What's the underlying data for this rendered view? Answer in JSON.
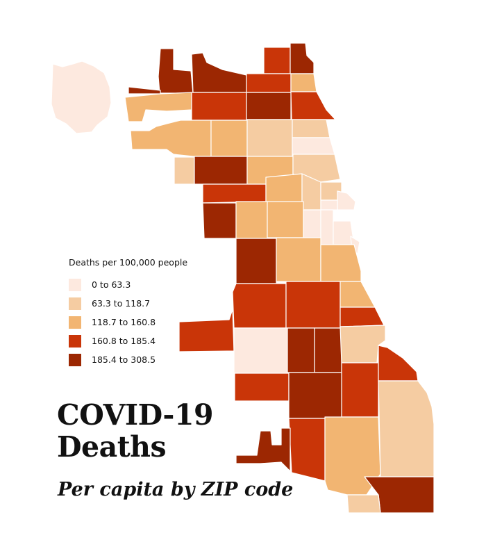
{
  "title_line1": "COVID-19",
  "title_line2": "Deaths",
  "subtitle": "Per capita by ZIP code",
  "legend": {
    "title": "Deaths per 100,000 people",
    "bins": [
      {
        "label": "0 to 63.3",
        "color": "#fde9df"
      },
      {
        "label": "63.3 to 118.7",
        "color": "#f5cca2"
      },
      {
        "label": "118.7 to 160.8",
        "color": "#f2b572"
      },
      {
        "label": "160.8 to 185.4",
        "color": "#c93508"
      },
      {
        "label": "185.4 to 308.5",
        "color": "#9c2702"
      }
    ]
  },
  "zip_areas": [
    {
      "bin": 0
    },
    {
      "bin": 4
    },
    {
      "bin": 4
    },
    {
      "bin": 4
    },
    {
      "bin": 3
    },
    {
      "bin": 4
    },
    {
      "bin": 3
    },
    {
      "bin": 2
    },
    {
      "bin": 2
    },
    {
      "bin": 3
    },
    {
      "bin": 4
    },
    {
      "bin": 3
    },
    {
      "bin": 2
    },
    {
      "bin": 2
    },
    {
      "bin": 1
    },
    {
      "bin": 1
    },
    {
      "bin": 0
    },
    {
      "bin": 1
    },
    {
      "bin": 4
    },
    {
      "bin": 2
    },
    {
      "bin": 1
    },
    {
      "bin": 3
    },
    {
      "bin": 2
    },
    {
      "bin": 1
    },
    {
      "bin": 1
    },
    {
      "bin": 0
    },
    {
      "bin": 0
    },
    {
      "bin": 4
    },
    {
      "bin": 2
    },
    {
      "bin": 2
    },
    {
      "bin": 0
    },
    {
      "bin": 0
    },
    {
      "bin": 0
    },
    {
      "bin": 0
    },
    {
      "bin": 4
    },
    {
      "bin": 2
    },
    {
      "bin": 2
    },
    {
      "bin": 3
    },
    {
      "bin": 3
    },
    {
      "bin": 2
    },
    {
      "bin": 3
    },
    {
      "bin": 0
    },
    {
      "bin": 3
    },
    {
      "bin": 4
    },
    {
      "bin": 4
    },
    {
      "bin": 1
    },
    {
      "bin": 3
    },
    {
      "bin": 3
    },
    {
      "bin": 4
    },
    {
      "bin": 3
    },
    {
      "bin": 3
    },
    {
      "bin": 2
    },
    {
      "bin": 1
    },
    {
      "bin": 4
    },
    {
      "bin": 4
    },
    {
      "bin": 1
    },
    {
      "bin": 0
    },
    {
      "bin": 1
    },
    {
      "bin": 0
    }
  ]
}
